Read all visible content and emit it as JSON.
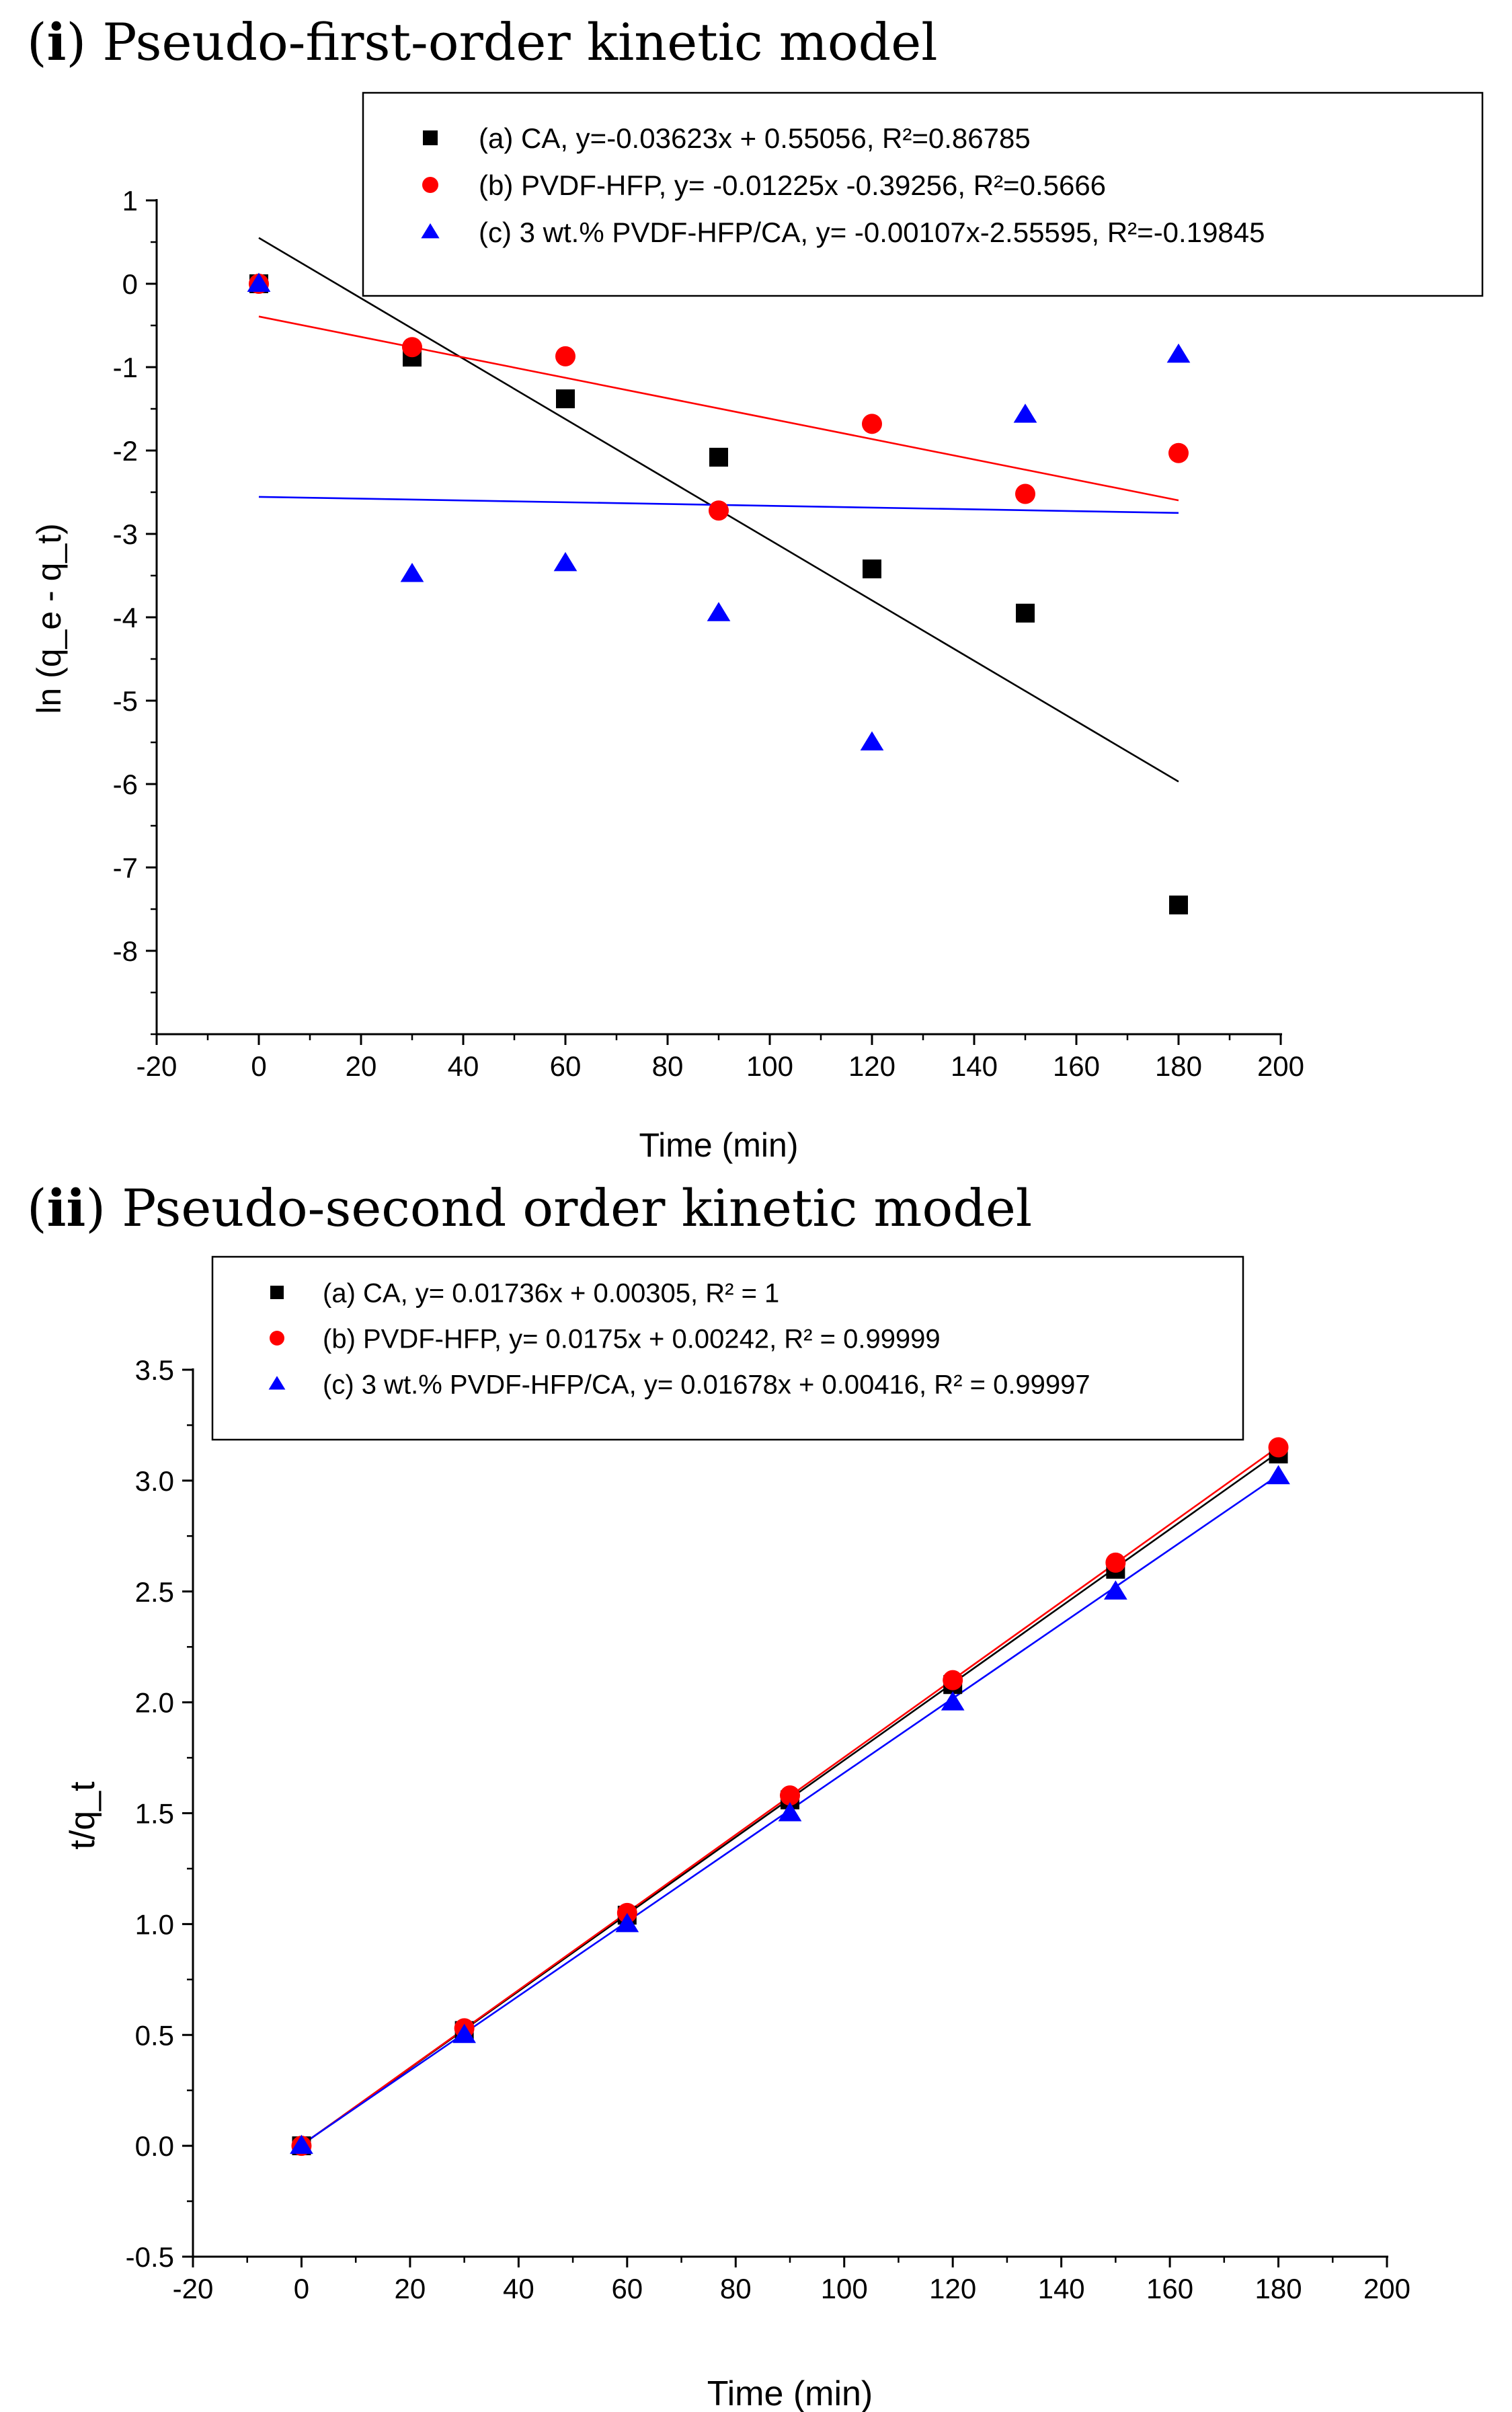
{
  "panels": [
    {
      "label": "i",
      "title": "Pseudo-first-order kinetic model"
    },
    {
      "label": "ii",
      "title": "Pseudo-second order kinetic model"
    }
  ],
  "chart_data": [
    {
      "type": "scatter",
      "title": "(i) Pseudo-first-order kinetic model",
      "xlabel": "Time (min)",
      "ylabel": "ln (q_e - q_t)",
      "xlim": [
        -20,
        200
      ],
      "ylim": [
        -9,
        1
      ],
      "xticks": [
        -20,
        0,
        20,
        40,
        60,
        80,
        100,
        120,
        140,
        160,
        180,
        200
      ],
      "yticks": [
        1,
        0,
        -1,
        -2,
        -3,
        -4,
        -5,
        -6,
        -7,
        -8
      ],
      "legend_position": "top-right",
      "series": [
        {
          "name": "(a) CA, y=-0.03623x +  0.55056, R²=0.86785",
          "marker": "square",
          "color": "#000000",
          "x": [
            0,
            30,
            60,
            90,
            120,
            150,
            180
          ],
          "y": [
            0,
            -0.88,
            -1.38,
            -2.08,
            -3.42,
            -3.95,
            -7.45
          ],
          "fit": {
            "slope": -0.03623,
            "intercept": 0.55056,
            "x_range": [
              0,
              180
            ]
          }
        },
        {
          "name": "(b) PVDF-HFP, y= -0.01225x -0.39256, R²=0.5666",
          "marker": "circle",
          "color": "#ff0000",
          "x": [
            0,
            30,
            60,
            90,
            120,
            150,
            180
          ],
          "y": [
            0,
            -0.76,
            -0.87,
            -2.72,
            -1.68,
            -2.52,
            -2.03
          ],
          "fit": {
            "slope": -0.01225,
            "intercept": -0.39256,
            "x_range": [
              0,
              180
            ]
          }
        },
        {
          "name": "(c) 3 wt.% PVDF-HFP/CA, y= -0.00107x-2.55595, R²=-0.19845",
          "marker": "triangle",
          "color": "#0000ff",
          "x": [
            0,
            30,
            60,
            90,
            120,
            150,
            180
          ],
          "y": [
            0,
            -3.48,
            -3.35,
            -3.95,
            -5.5,
            -1.57,
            -0.85
          ],
          "fit": {
            "slope": -0.00107,
            "intercept": -2.55595,
            "x_range": [
              0,
              180
            ]
          }
        }
      ]
    },
    {
      "type": "scatter",
      "title": "(ii) Pseudo-second order kinetic model",
      "xlabel": "Time (min)",
      "ylabel": "t/q_t",
      "xlim": [
        -20,
        200
      ],
      "ylim": [
        -0.5,
        3.5
      ],
      "xticks": [
        -20,
        0,
        20,
        40,
        60,
        80,
        100,
        120,
        140,
        160,
        180,
        200
      ],
      "yticks": [
        -0.5,
        0.0,
        0.5,
        1.0,
        1.5,
        2.0,
        2.5,
        3.0,
        3.5
      ],
      "legend_position": "top-left",
      "series": [
        {
          "name": "(a) CA, y= 0.01736x + 0.00305, R² = 1",
          "marker": "square",
          "color": "#000000",
          "x": [
            0,
            30,
            60,
            90,
            120,
            150,
            180
          ],
          "y": [
            0,
            0.52,
            1.04,
            1.56,
            2.08,
            2.6,
            3.12
          ],
          "fit": {
            "slope": 0.01736,
            "intercept": 0.00305,
            "x_range": [
              0,
              180
            ]
          }
        },
        {
          "name": "(b) PVDF-HFP, y= 0.0175x + 0.00242, R² = 0.99999",
          "marker": "circle",
          "color": "#ff0000",
          "x": [
            0,
            30,
            60,
            90,
            120,
            150,
            180
          ],
          "y": [
            0,
            0.53,
            1.05,
            1.58,
            2.1,
            2.63,
            3.15
          ],
          "fit": {
            "slope": 0.0175,
            "intercept": 0.00242,
            "x_range": [
              0,
              180
            ]
          }
        },
        {
          "name": "(c) 3 wt.% PVDF-HFP/CA, y= 0.01678x + 0.00416, R² = 0.99997",
          "marker": "triangle",
          "color": "#0000ff",
          "x": [
            0,
            30,
            60,
            90,
            120,
            150,
            180
          ],
          "y": [
            0,
            0.5,
            1.0,
            1.5,
            2.0,
            2.5,
            3.02
          ],
          "fit": {
            "slope": 0.01678,
            "intercept": 0.00416,
            "x_range": [
              0,
              180
            ]
          }
        }
      ]
    }
  ]
}
